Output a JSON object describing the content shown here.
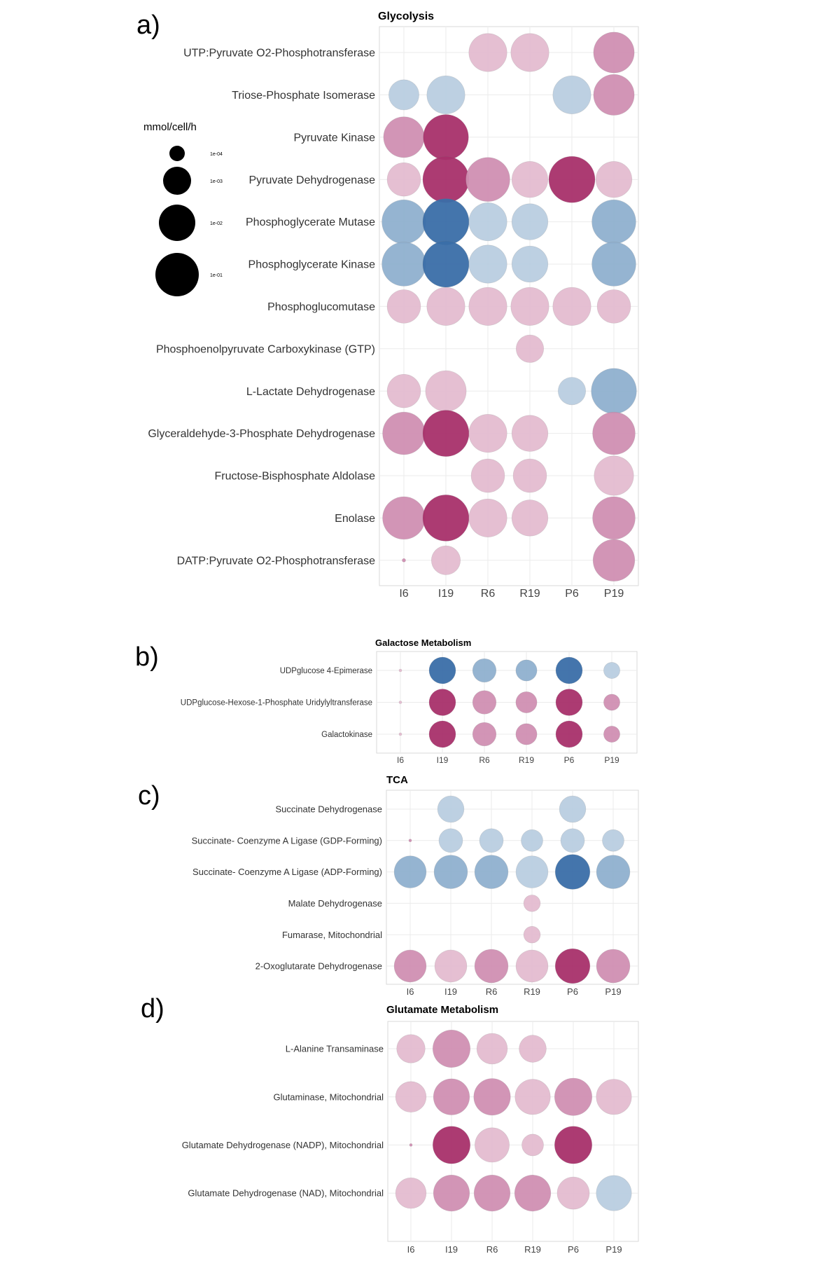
{
  "legend": {
    "title": "mmol/cell/h",
    "entries": [
      "1e-04",
      "1e-03",
      "1e-02",
      "1e-01"
    ]
  },
  "colors": {
    "pink_light": "#e4bcd0",
    "pink_mid": "#d08fb2",
    "pink_dark": "#a8306a",
    "blue_light": "#b9cde0",
    "blue_mid": "#8fb0cf",
    "blue_dark": "#3a6ea8",
    "panel_border": "#d9d9d9",
    "grid": "#ebebeb"
  },
  "chart_data": [
    {
      "panel_label": "a)",
      "type": "scatter",
      "title": "Glycolysis",
      "x": [
        "I6",
        "I19",
        "R6",
        "R19",
        "P6",
        "P19"
      ],
      "rows": [
        {
          "name": "UTP:Pyruvate O2-Phosphotransferase",
          "cells": [
            null,
            null,
            [
              "pink",
              1,
              0.02
            ],
            [
              "pink",
              1,
              0.02
            ],
            null,
            [
              "pink",
              2,
              0.03
            ]
          ]
        },
        {
          "name": "Triose-Phosphate Isomerase",
          "cells": [
            [
              "blue",
              1,
              0.006
            ],
            [
              "blue",
              1,
              0.02
            ],
            null,
            null,
            [
              "blue",
              1,
              0.02
            ],
            [
              "pink",
              2,
              0.03
            ]
          ]
        },
        {
          "name": "Pyruvate Kinase",
          "cells": [
            [
              "pink",
              2,
              0.03
            ],
            [
              "pink",
              3,
              0.06
            ],
            null,
            null,
            null,
            null
          ]
        },
        {
          "name": "Pyruvate Dehydrogenase",
          "cells": [
            [
              "pink",
              1,
              0.01
            ],
            [
              "pink",
              3,
              0.07
            ],
            [
              "pink",
              2,
              0.05
            ],
            [
              "pink",
              1,
              0.015
            ],
            [
              "pink",
              3,
              0.07
            ],
            [
              "pink",
              1,
              0.015
            ]
          ]
        },
        {
          "name": "Phosphoglycerate Mutase",
          "cells": [
            [
              "blue",
              2,
              0.05
            ],
            [
              "blue",
              3,
              0.07
            ],
            [
              "blue",
              1,
              0.02
            ],
            [
              "blue",
              1,
              0.015
            ],
            null,
            [
              "blue",
              2,
              0.05
            ]
          ]
        },
        {
          "name": "Phosphoglycerate Kinase",
          "cells": [
            [
              "blue",
              2,
              0.05
            ],
            [
              "blue",
              3,
              0.07
            ],
            [
              "blue",
              1,
              0.02
            ],
            [
              "blue",
              1,
              0.015
            ],
            null,
            [
              "blue",
              2,
              0.05
            ]
          ]
        },
        {
          "name": "Phosphoglucomutase",
          "cells": [
            [
              "pink",
              1,
              0.01
            ],
            [
              "pink",
              1,
              0.02
            ],
            [
              "pink",
              1,
              0.02
            ],
            [
              "pink",
              1,
              0.02
            ],
            [
              "pink",
              1,
              0.02
            ],
            [
              "pink",
              1,
              0.01
            ]
          ]
        },
        {
          "name": "Phosphoenolpyruvate Carboxykinase (GTP)",
          "cells": [
            null,
            null,
            null,
            [
              "pink",
              1,
              0.004
            ],
            null,
            null
          ]
        },
        {
          "name": "L-Lactate Dehydrogenase",
          "cells": [
            [
              "pink",
              1,
              0.01
            ],
            [
              "pink",
              1,
              0.03
            ],
            null,
            null,
            [
              "blue",
              1,
              0.004
            ],
            [
              "blue",
              2,
              0.06
            ]
          ]
        },
        {
          "name": "Glyceraldehyde-3-Phosphate Dehydrogenase",
          "cells": [
            [
              "pink",
              2,
              0.04
            ],
            [
              "pink",
              3,
              0.07
            ],
            [
              "pink",
              1,
              0.02
            ],
            [
              "pink",
              1,
              0.015
            ],
            null,
            [
              "pink",
              2,
              0.04
            ]
          ]
        },
        {
          "name": "Fructose-Bisphosphate Aldolase",
          "cells": [
            null,
            null,
            [
              "pink",
              1,
              0.01
            ],
            [
              "pink",
              1,
              0.01
            ],
            null,
            [
              "pink",
              1,
              0.025
            ]
          ]
        },
        {
          "name": "Enolase",
          "cells": [
            [
              "pink",
              2,
              0.04
            ],
            [
              "pink",
              3,
              0.07
            ],
            [
              "pink",
              1,
              0.02
            ],
            [
              "pink",
              1,
              0.015
            ],
            null,
            [
              "pink",
              2,
              0.04
            ]
          ]
        },
        {
          "name": "DATP:Pyruvate O2-Phosphotransferase",
          "cells": [
            [
              "pink",
              2,
              0.0001
            ],
            [
              "pink",
              1,
              0.005
            ],
            null,
            null,
            null,
            [
              "pink",
              2,
              0.035
            ]
          ]
        }
      ]
    },
    {
      "panel_label": "b)",
      "type": "scatter",
      "title": "Galactose Metabolism",
      "x": [
        "I6",
        "I19",
        "R6",
        "R19",
        "P6",
        "P19"
      ],
      "rows": [
        {
          "name": "UDPglucose 4-Epimerase",
          "cells": [
            [
              "pink",
              1,
              0.0001
            ],
            [
              "blue",
              3,
              0.02
            ],
            [
              "blue",
              2,
              0.01
            ],
            [
              "blue",
              2,
              0.006
            ],
            [
              "blue",
              3,
              0.02
            ],
            [
              "blue",
              1,
              0.002
            ]
          ]
        },
        {
          "name": "UDPglucose-Hexose-1-Phosphate Uridylyltransferase",
          "cells": [
            [
              "pink",
              1,
              0.0001
            ],
            [
              "pink",
              3,
              0.02
            ],
            [
              "pink",
              2,
              0.01
            ],
            [
              "pink",
              2,
              0.006
            ],
            [
              "pink",
              3,
              0.02
            ],
            [
              "pink",
              2,
              0.002
            ]
          ]
        },
        {
          "name": "Galactokinase",
          "cells": [
            [
              "pink",
              1,
              0.0001
            ],
            [
              "pink",
              3,
              0.02
            ],
            [
              "pink",
              2,
              0.01
            ],
            [
              "pink",
              2,
              0.006
            ],
            [
              "pink",
              3,
              0.02
            ],
            [
              "pink",
              2,
              0.002
            ]
          ]
        }
      ]
    },
    {
      "panel_label": "c)",
      "type": "scatter",
      "title": "TCA",
      "x": [
        "I6",
        "I19",
        "R6",
        "R19",
        "P6",
        "P19"
      ],
      "rows": [
        {
          "name": "Succinate Dehydrogenase",
          "cells": [
            null,
            [
              "blue",
              1,
              0.01
            ],
            null,
            null,
            [
              "blue",
              1,
              0.01
            ],
            null
          ]
        },
        {
          "name": "Succinate- Coenzyme A Ligase (GDP-Forming)",
          "cells": [
            [
              "pink",
              2,
              0.0001
            ],
            [
              "blue",
              1,
              0.006
            ],
            [
              "blue",
              1,
              0.006
            ],
            [
              "blue",
              1,
              0.004
            ],
            [
              "blue",
              1,
              0.006
            ],
            [
              "blue",
              1,
              0.004
            ]
          ]
        },
        {
          "name": "Succinate- Coenzyme A Ligase (ADP-Forming)",
          "cells": [
            [
              "blue",
              2,
              0.03
            ],
            [
              "blue",
              2,
              0.04
            ],
            [
              "blue",
              2,
              0.04
            ],
            [
              "blue",
              1,
              0.03
            ],
            [
              "blue",
              3,
              0.05
            ],
            [
              "blue",
              2,
              0.04
            ]
          ]
        },
        {
          "name": "Malate Dehydrogenase",
          "cells": [
            null,
            null,
            null,
            [
              "pink",
              1,
              0.0015
            ],
            null,
            null
          ]
        },
        {
          "name": "Fumarase, Mitochondrial",
          "cells": [
            null,
            null,
            null,
            [
              "pink",
              1,
              0.0015
            ],
            null,
            null
          ]
        },
        {
          "name": "2-Oxoglutarate Dehydrogenase",
          "cells": [
            [
              "pink",
              2,
              0.03
            ],
            [
              "pink",
              1,
              0.03
            ],
            [
              "pink",
              2,
              0.04
            ],
            [
              "pink",
              1,
              0.03
            ],
            [
              "pink",
              3,
              0.05
            ],
            [
              "pink",
              2,
              0.04
            ]
          ]
        }
      ]
    },
    {
      "panel_label": "d)",
      "type": "scatter",
      "title": "Glutamate Metabolism",
      "x": [
        "I6",
        "I19",
        "R6",
        "R19",
        "P6",
        "P19"
      ],
      "rows": [
        {
          "name": "L-Alanine Transaminase",
          "cells": [
            [
              "pink",
              1,
              0.01
            ],
            [
              "pink",
              2,
              0.05
            ],
            [
              "pink",
              1,
              0.015
            ],
            [
              "pink",
              1,
              0.008
            ],
            null,
            null
          ]
        },
        {
          "name": "Glutaminase, Mitochondrial",
          "cells": [
            [
              "pink",
              1,
              0.015
            ],
            [
              "pink",
              2,
              0.04
            ],
            [
              "pink",
              2,
              0.045
            ],
            [
              "pink",
              1,
              0.035
            ],
            [
              "pink",
              2,
              0.05
            ],
            [
              "pink",
              1,
              0.035
            ]
          ]
        },
        {
          "name": "Glutamate Dehydrogenase (NADP), Mitochondrial",
          "cells": [
            [
              "pink",
              2,
              0.0001
            ],
            [
              "pink",
              3,
              0.05
            ],
            [
              "pink",
              1,
              0.03
            ],
            [
              "pink",
              1,
              0.003
            ],
            [
              "pink",
              3,
              0.05
            ],
            null
          ]
        },
        {
          "name": "Glutamate Dehydrogenase (NAD), Mitochondrial",
          "cells": [
            [
              "pink",
              1,
              0.015
            ],
            [
              "pink",
              2,
              0.04
            ],
            [
              "pink",
              2,
              0.04
            ],
            [
              "pink",
              2,
              0.04
            ],
            [
              "pink",
              1,
              0.02
            ],
            [
              "blue",
              1,
              0.035
            ]
          ]
        }
      ]
    }
  ]
}
